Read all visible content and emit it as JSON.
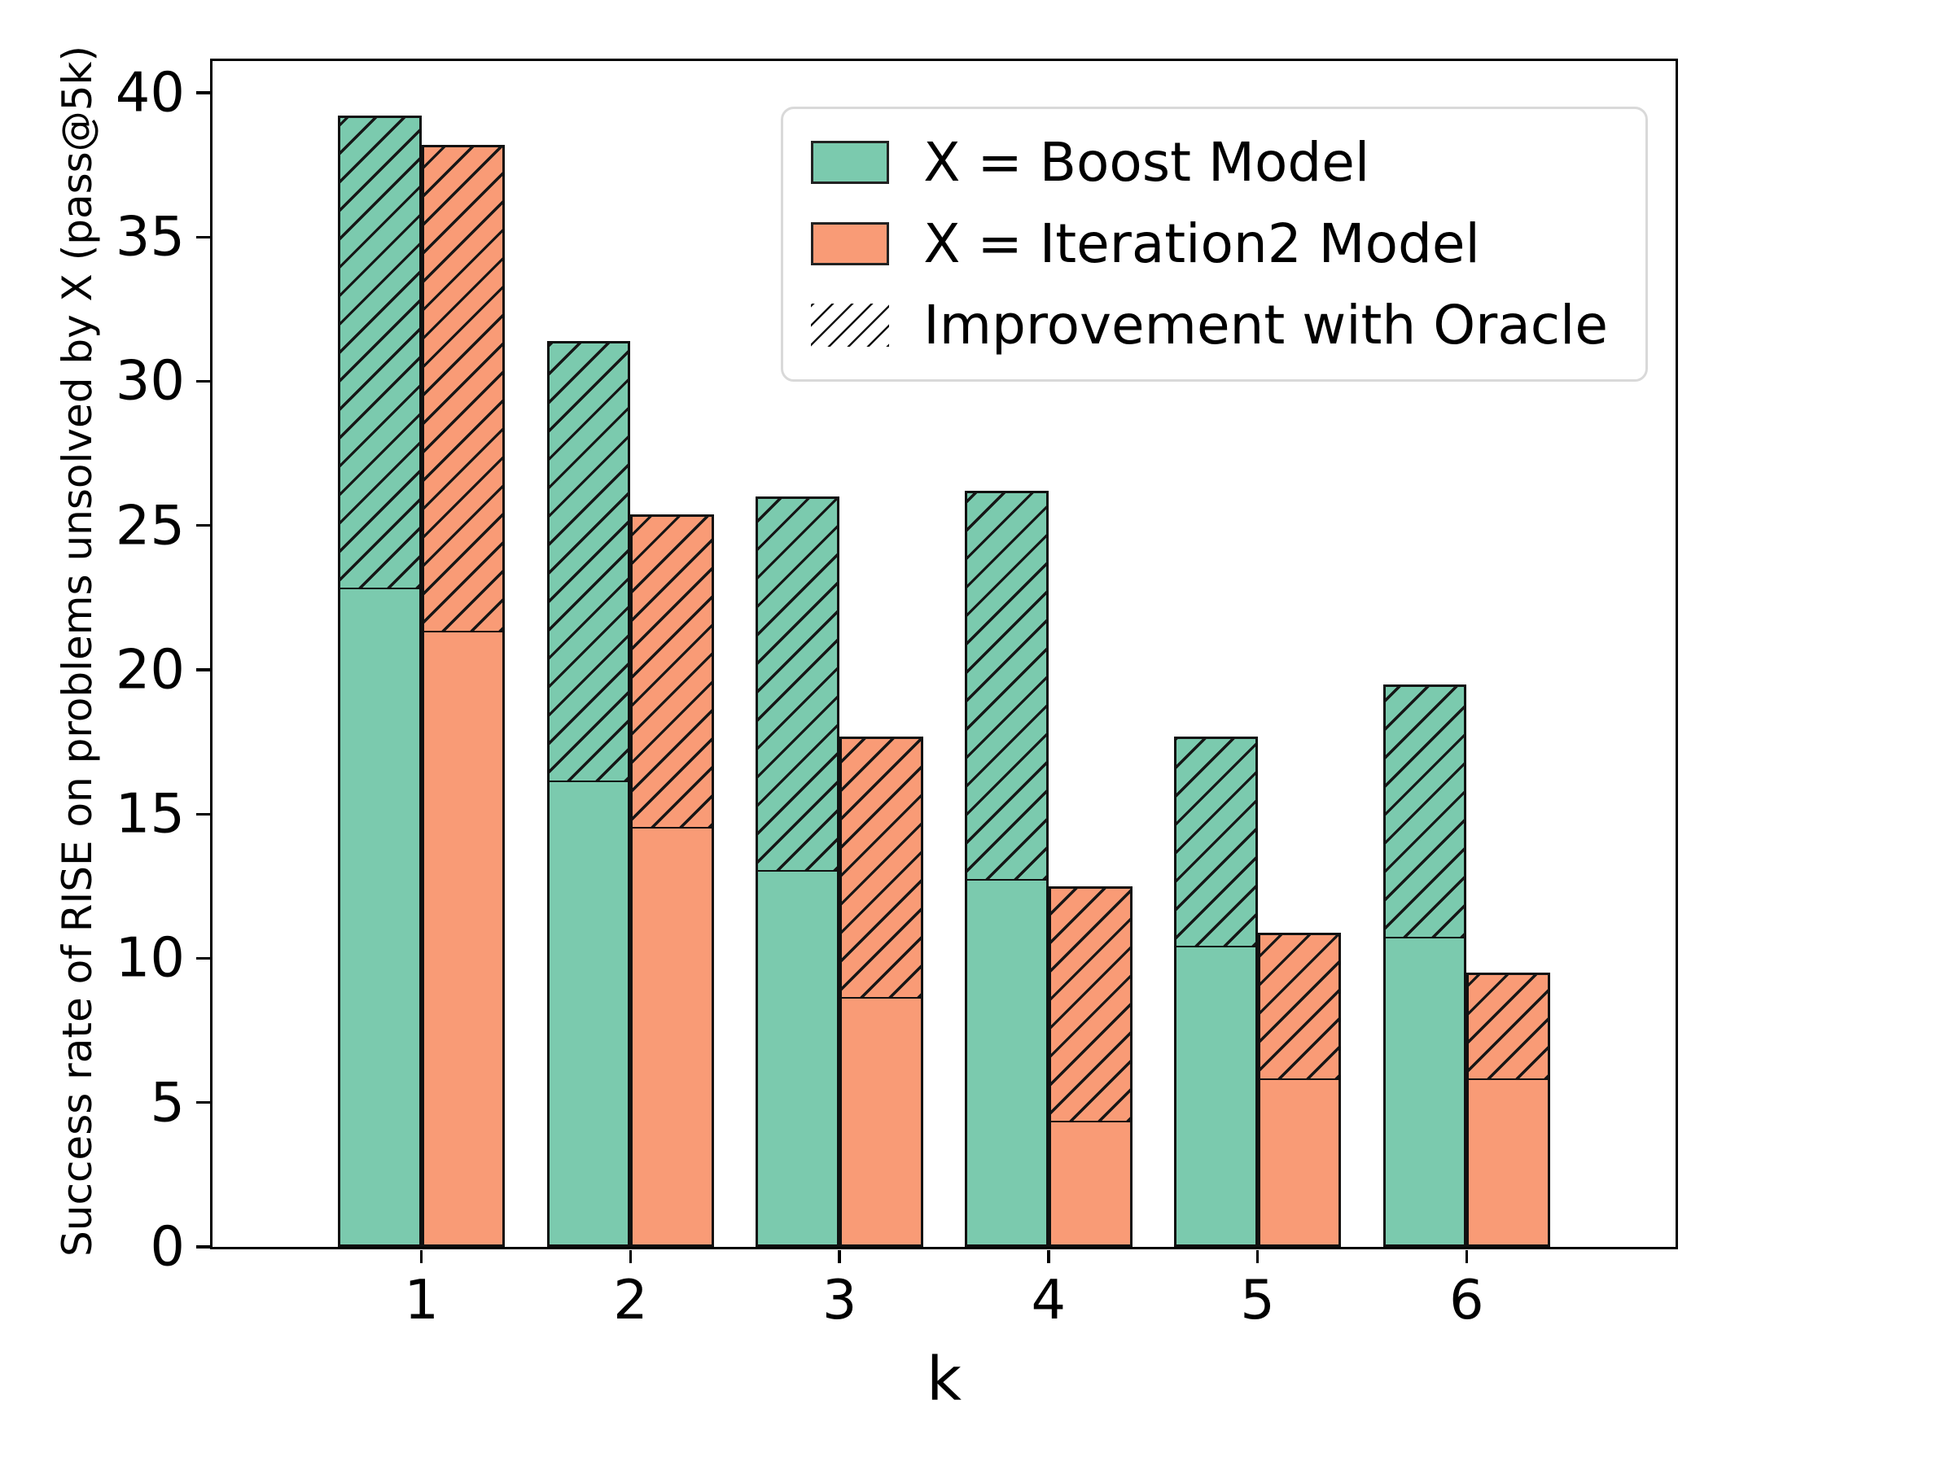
{
  "chart_data": {
    "type": "bar",
    "title": "",
    "xlabel": "k",
    "ylabel": "Success rate of RISE on problems unsolved by X (pass@5k)",
    "categories": [
      "1",
      "2",
      "3",
      "4",
      "5",
      "6"
    ],
    "yticks": [
      0,
      5,
      10,
      15,
      20,
      25,
      30,
      35,
      40
    ],
    "ylim": [
      0,
      41.1
    ],
    "grid": false,
    "legend_position": "upper right",
    "bar_width_category_units": 0.4,
    "series": [
      {
        "name": "X = Boost Model",
        "color": "#7bcaae",
        "edge_color": "#111111",
        "solid_values": [
          22.8,
          16.1,
          13.0,
          12.7,
          10.4,
          10.7
        ],
        "oracle_totals": [
          39.2,
          31.4,
          26.0,
          26.2,
          17.7,
          19.5
        ]
      },
      {
        "name": "X = Iteration2 Model",
        "color": "#f99b76",
        "edge_color": "#111111",
        "solid_values": [
          21.3,
          14.5,
          8.6,
          4.3,
          5.8,
          5.8
        ],
        "oracle_totals": [
          38.2,
          25.4,
          17.7,
          12.5,
          10.9,
          9.5
        ]
      }
    ],
    "hatch_overlay": {
      "label": "Improvement with Oracle",
      "pattern": "diagonal-forward-slash",
      "line_color": "#111111"
    }
  },
  "legend": {
    "items": [
      {
        "label": "X = Boost Model",
        "swatch": "green-box"
      },
      {
        "label": "X = Iteration2 Model",
        "swatch": "orange-box"
      },
      {
        "label": "Improvement with Oracle",
        "swatch": "hatch-lines"
      }
    ]
  }
}
